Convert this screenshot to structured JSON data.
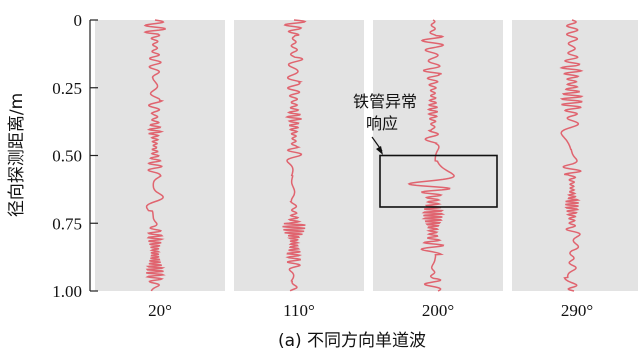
{
  "chart_data": {
    "type": "line",
    "title": "",
    "caption": "(a) 不同方向单道波",
    "ylabel": "径向探测距离/m",
    "xlabel": "",
    "ylim": [
      0,
      1.0
    ],
    "y_ticks": [
      {
        "value": 0,
        "label": "0"
      },
      {
        "value": 0.25,
        "label": "0.25"
      },
      {
        "value": 0.5,
        "label": "0.50"
      },
      {
        "value": 0.75,
        "label": "0.75"
      },
      {
        "value": 1.0,
        "label": "1.00"
      }
    ],
    "grid": false,
    "panels": [
      {
        "name": "20°",
        "label": "20°"
      },
      {
        "name": "110°",
        "label": "110°"
      },
      {
        "name": "200°",
        "label": "200°"
      },
      {
        "name": "290°",
        "label": "290°"
      }
    ],
    "annotation": {
      "panel": "200°",
      "text_line1": "铁管异常",
      "text_line2": "响应",
      "y_range": [
        0.5,
        0.69
      ]
    },
    "colors": {
      "panel_bg": "#e3e3e3",
      "trace": "#e0646f",
      "axis": "#222222",
      "box": "#111111"
    }
  }
}
